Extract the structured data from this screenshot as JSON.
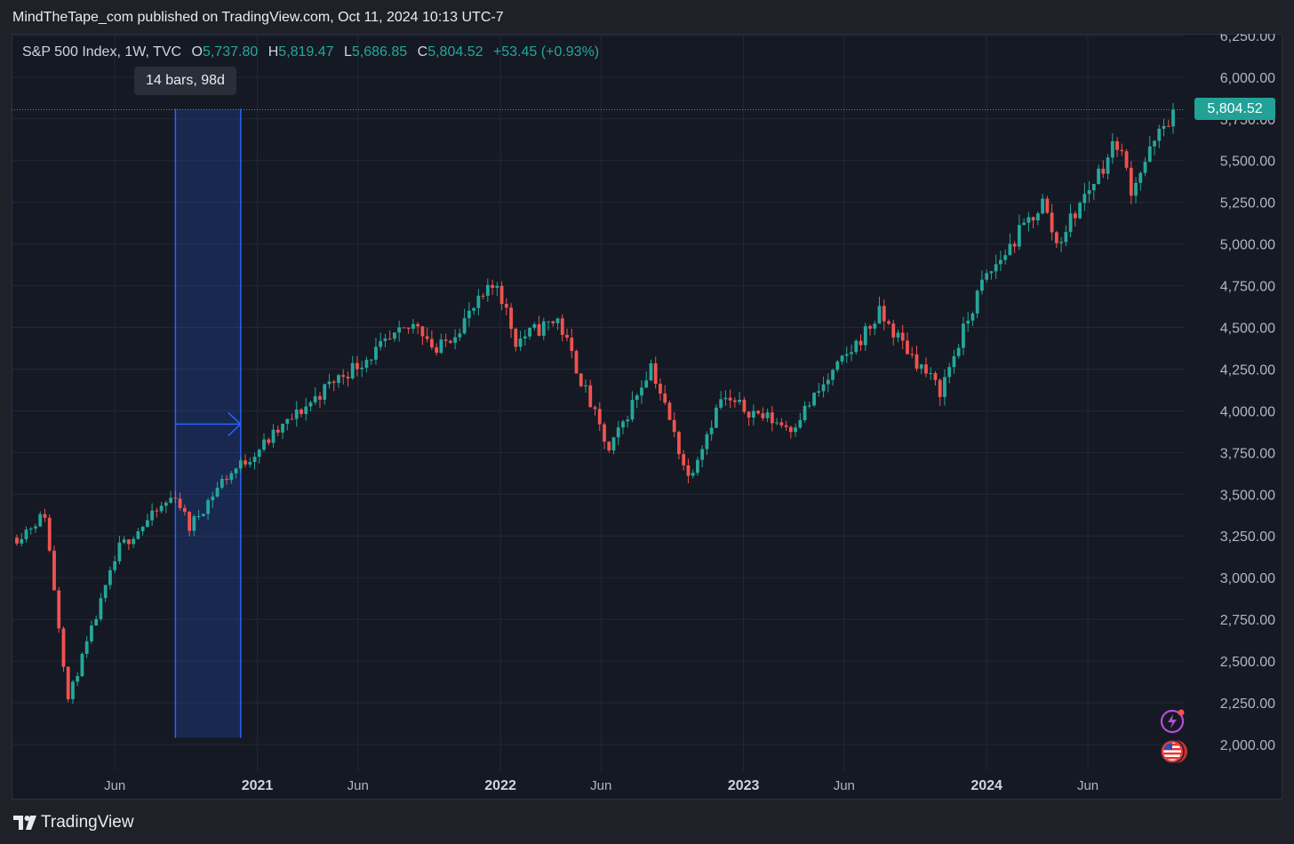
{
  "header": {
    "publish_line": "MindTheTape_com published on TradingView.com, Oct 11, 2024 10:13 UTC-7"
  },
  "legend": {
    "symbol": "S&P 500 Index, 1W, TVC",
    "open_label": "O",
    "open": "5,737.80",
    "high_label": "H",
    "high": "5,819.47",
    "low_label": "L",
    "low": "5,686.85",
    "close_label": "C",
    "close": "5,804.52",
    "change": "+53.45 (+0.93%)"
  },
  "measure_tool": {
    "label": "14 bars, 98d",
    "start_date": "2020-08-31",
    "end_date": "2020-12-07"
  },
  "last_price": {
    "label": "5,804.52",
    "value": 5804.52
  },
  "footer": {
    "brand": "TradingView"
  },
  "icons": [
    "lightning-icon",
    "us-flag-icon",
    "tradingview-logo-icon"
  ],
  "colors": {
    "up": "#26a69a",
    "down": "#ef5350",
    "background": "#151923",
    "measure": "#2962ff",
    "price_tag": "#22a196"
  },
  "chart_data": {
    "type": "candlestick",
    "title": "S&P 500 Index, 1W, TVC",
    "xlabel": "",
    "ylabel": "",
    "x_range": [
      "2020-01-06",
      "2024-10-07"
    ],
    "ylim": [
      1840,
      6260
    ],
    "y_ticks": [
      {
        "value": 2000,
        "label": "2,000.00"
      },
      {
        "value": 2250,
        "label": "2,250.00"
      },
      {
        "value": 2500,
        "label": "2,500.00"
      },
      {
        "value": 2750,
        "label": "2,750.00"
      },
      {
        "value": 3000,
        "label": "3,000.00"
      },
      {
        "value": 3250,
        "label": "3,250.00"
      },
      {
        "value": 3500,
        "label": "3,500.00"
      },
      {
        "value": 3750,
        "label": "3,750.00"
      },
      {
        "value": 4000,
        "label": "4,000.00"
      },
      {
        "value": 4250,
        "label": "4,250.00"
      },
      {
        "value": 4500,
        "label": "4,500.00"
      },
      {
        "value": 4750,
        "label": "4,750.00"
      },
      {
        "value": 5000,
        "label": "5,000.00"
      },
      {
        "value": 5250,
        "label": "5,250.00"
      },
      {
        "value": 5500,
        "label": "5,500.00"
      },
      {
        "value": 5750,
        "label": "5,750.00"
      },
      {
        "value": 6000,
        "label": "6,000.00"
      },
      {
        "value": 6250,
        "label": "6,250.00"
      }
    ],
    "x_ticks": [
      {
        "date": "2020-06-01",
        "label": "Jun",
        "bold": false
      },
      {
        "date": "2021-01-01",
        "label": "2021",
        "bold": true
      },
      {
        "date": "2021-06-01",
        "label": "Jun",
        "bold": false
      },
      {
        "date": "2022-01-01",
        "label": "2022",
        "bold": true
      },
      {
        "date": "2022-06-01",
        "label": "Jun",
        "bold": false
      },
      {
        "date": "2023-01-01",
        "label": "2023",
        "bold": true
      },
      {
        "date": "2023-06-01",
        "label": "Jun",
        "bold": false
      },
      {
        "date": "2024-01-01",
        "label": "2024",
        "bold": true
      },
      {
        "date": "2024-06-01",
        "label": "Jun",
        "bold": false
      }
    ],
    "anchors": [
      [
        "2020-01-06",
        3240
      ],
      [
        "2020-02-17",
        3380
      ],
      [
        "2020-03-23",
        2270
      ],
      [
        "2020-06-08",
        3180
      ],
      [
        "2020-08-31",
        3500
      ],
      [
        "2020-09-21",
        3300
      ],
      [
        "2020-11-09",
        3580
      ],
      [
        "2020-12-28",
        3750
      ],
      [
        "2021-04-26",
        4180
      ],
      [
        "2021-08-30",
        4530
      ],
      [
        "2021-09-27",
        4350
      ],
      [
        "2021-12-27",
        4770
      ],
      [
        "2022-01-24",
        4420
      ],
      [
        "2022-03-28",
        4550
      ],
      [
        "2022-06-13",
        3750
      ],
      [
        "2022-08-15",
        4280
      ],
      [
        "2022-10-10",
        3600
      ],
      [
        "2022-11-28",
        4070
      ],
      [
        "2023-03-13",
        3900
      ],
      [
        "2023-07-24",
        4580
      ],
      [
        "2023-10-23",
        4120
      ],
      [
        "2023-12-25",
        4760
      ],
      [
        "2024-03-25",
        5250
      ],
      [
        "2024-04-15",
        5000
      ],
      [
        "2024-07-15",
        5620
      ],
      [
        "2024-08-05",
        5340
      ],
      [
        "2024-10-07",
        5804
      ]
    ],
    "grid": true,
    "legend_position": "top-left"
  }
}
